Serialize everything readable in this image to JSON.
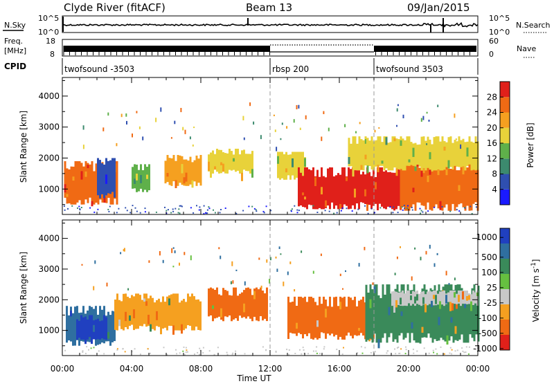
{
  "header": {
    "station": "Clyde River (fitACF)",
    "beam": "Beam 13",
    "date": "09/Jan/2015"
  },
  "top_panels": {
    "nsky_label": "N.Sky",
    "noise_ticks": [
      "10^5",
      "10^0"
    ],
    "nsearch_label": "N.Search",
    "freq_label_1": "Freq.",
    "freq_label_2": "[MHz]",
    "freq_ticks": [
      "18",
      "8"
    ],
    "nave_ticks": [
      "60",
      "0"
    ],
    "nave_label": "Nave",
    "cpid_label": "CPID",
    "cpid_segments": [
      {
        "name": "twofsound -3503",
        "start_hour": 0,
        "end_hour": 12
      },
      {
        "name": "rbsp 200",
        "start_hour": 12,
        "end_hour": 18
      },
      {
        "name": "twofsound 3503",
        "start_hour": 18,
        "end_hour": 24
      }
    ]
  },
  "chart_data": [
    {
      "type": "heatmap",
      "title": "",
      "xlabel": "Time UT",
      "ylabel": "Slant Range [km]",
      "x_ticks": [
        "00:00",
        "04:00",
        "08:00",
        "12:00",
        "16:00",
        "20:00",
        "00:00"
      ],
      "x_range_hours": [
        0,
        24
      ],
      "y_ticks": [
        1000,
        2000,
        3000,
        4000
      ],
      "ylim": [
        180,
        4600
      ],
      "colorbar_label": "Power [dB]",
      "colorbar_ticks": [
        4,
        8,
        12,
        16,
        20,
        24,
        28
      ],
      "colorbar_range": [
        0,
        32
      ],
      "colors": [
        "#1a1aff",
        "#2f4fb0",
        "#3c8a6e",
        "#5fb04a",
        "#e8d23a",
        "#f5a020",
        "#f06a14",
        "#e0201a"
      ],
      "series": [
        {
          "name": "echo",
          "t_start": 0.1,
          "t_end": 3.2,
          "r_low": 500,
          "r_high": 1900,
          "value": 26
        },
        {
          "name": "echo",
          "t_start": 2.0,
          "t_end": 3.0,
          "r_low": 700,
          "r_high": 2000,
          "value": 6
        },
        {
          "name": "echo",
          "t_start": 4.0,
          "t_end": 5.0,
          "r_low": 900,
          "r_high": 1800,
          "value": 14
        },
        {
          "name": "echo",
          "t_start": 5.9,
          "t_end": 8.0,
          "r_low": 1100,
          "r_high": 2100,
          "value": 22
        },
        {
          "name": "echo",
          "t_start": 8.4,
          "t_end": 11.0,
          "r_low": 1500,
          "r_high": 2300,
          "value": 18
        },
        {
          "name": "echo",
          "t_start": 12.4,
          "t_end": 14.0,
          "r_low": 1300,
          "r_high": 2200,
          "value": 16
        },
        {
          "name": "echo",
          "t_start": 13.6,
          "t_end": 19.5,
          "r_low": 350,
          "r_high": 1700,
          "value": 29
        },
        {
          "name": "echo",
          "t_start": 19.5,
          "t_end": 24.0,
          "r_low": 300,
          "r_high": 2000,
          "value": 27
        },
        {
          "name": "echo",
          "t_start": 16.5,
          "t_end": 24.0,
          "r_low": 1600,
          "r_high": 2700,
          "value": 17
        }
      ]
    },
    {
      "type": "heatmap",
      "title": "",
      "xlabel": "Time UT",
      "ylabel": "Slant Range [km]",
      "x_ticks": [
        "00:00",
        "04:00",
        "08:00",
        "12:00",
        "16:00",
        "20:00",
        "00:00"
      ],
      "x_range_hours": [
        0,
        24
      ],
      "y_ticks": [
        1000,
        2000,
        3000,
        4000
      ],
      "ylim": [
        180,
        4600
      ],
      "colorbar_label": "Velocity [m s^-1]",
      "colorbar_ticks": [
        "1000",
        "500",
        "100",
        "25",
        "-25",
        "-100",
        "-500",
        "-1000"
      ],
      "colors": [
        "#2040c0",
        "#2f6fa0",
        "#3a8a5a",
        "#66c040",
        "#c8c8c8",
        "#f5a020",
        "#f06a14",
        "#e0201a"
      ],
      "series": [
        {
          "name": "echo",
          "t_start": 0.2,
          "t_end": 3.0,
          "r_low": 500,
          "r_high": 1800,
          "value": 500
        },
        {
          "name": "echo",
          "t_start": 0.8,
          "t_end": 2.6,
          "r_low": 700,
          "r_high": 1500,
          "value": 1000
        },
        {
          "name": "echo",
          "t_start": 3.0,
          "t_end": 8.0,
          "r_low": 1000,
          "r_high": 2200,
          "value": -200
        },
        {
          "name": "echo",
          "t_start": 8.4,
          "t_end": 11.8,
          "r_low": 1300,
          "r_high": 2400,
          "value": -300
        },
        {
          "name": "echo",
          "t_start": 13.0,
          "t_end": 18.0,
          "r_low": 700,
          "r_high": 2100,
          "value": -300
        },
        {
          "name": "echo",
          "t_start": 17.5,
          "t_end": 24.0,
          "r_low": 600,
          "r_high": 2500,
          "value": 200
        },
        {
          "name": "echo",
          "t_start": 19.0,
          "t_end": 24.0,
          "r_low": 1800,
          "r_high": 2300,
          "value": 0
        }
      ]
    }
  ]
}
